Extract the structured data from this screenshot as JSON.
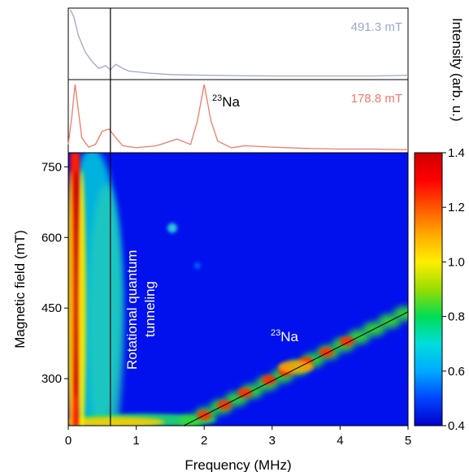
{
  "chart_data": [
    {
      "type": "line",
      "panel": "top",
      "series": [
        {
          "name": "491.3 mT",
          "color": "#9aa8c8",
          "x": [
            0.03,
            0.08,
            0.15,
            0.25,
            0.35,
            0.45,
            0.55,
            0.62,
            0.7,
            0.8,
            0.9,
            1.0,
            1.2,
            1.5,
            2.0,
            2.5,
            3.0,
            3.5,
            4.0,
            4.5,
            5.0
          ],
          "y": [
            1.0,
            0.9,
            0.62,
            0.38,
            0.24,
            0.14,
            0.18,
            0.12,
            0.2,
            0.14,
            0.1,
            0.09,
            0.07,
            0.05,
            0.04,
            0.035,
            0.03,
            0.03,
            0.03,
            0.03,
            0.04
          ]
        }
      ],
      "xlim": [
        0,
        5
      ]
    },
    {
      "type": "line",
      "panel": "middle",
      "series": [
        {
          "name": "178.8 mT",
          "color": "#f07a68",
          "x": [
            0.0,
            0.05,
            0.1,
            0.15,
            0.2,
            0.3,
            0.4,
            0.5,
            0.6,
            0.7,
            0.8,
            1.0,
            1.3,
            1.6,
            1.8,
            1.9,
            2.0,
            2.1,
            2.2,
            2.4,
            2.6,
            3.0,
            3.5,
            4.0,
            4.5,
            5.0
          ],
          "y": [
            0.1,
            0.5,
            1.0,
            0.6,
            0.2,
            0.06,
            0.1,
            0.3,
            0.33,
            0.2,
            0.08,
            0.05,
            0.08,
            0.18,
            0.1,
            0.45,
            1.0,
            0.45,
            0.15,
            0.05,
            0.08,
            0.06,
            0.04,
            0.03,
            0.03,
            0.02
          ]
        }
      ],
      "annotations": [
        {
          "text": "Na",
          "superscript": "23"
        }
      ],
      "xlim": [
        0,
        5
      ]
    },
    {
      "type": "heatmap",
      "panel": "main",
      "xlabel": "Frequency (MHz)",
      "ylabel": "Magnetic field (mT)",
      "xlim": [
        0,
        5
      ],
      "ylim": [
        200,
        780
      ],
      "xticks": [
        "0",
        "1",
        "2",
        "3",
        "4",
        "5"
      ],
      "xtick_values": [
        0,
        1,
        2,
        3,
        4,
        5
      ],
      "yticks": [
        "300",
        "450",
        "600",
        "750"
      ],
      "ytick_values": [
        300,
        450,
        600,
        750
      ],
      "vertical_line_x": 0.62,
      "na_line": {
        "x": [
          1.7,
          5.0
        ],
        "y": [
          200,
          442
        ]
      },
      "annotations": [
        {
          "text": "Rotational quantum",
          "text2": "tunneling",
          "rotation": -90
        },
        {
          "text": "Na",
          "superscript": "23"
        }
      ],
      "colorbar": {
        "label": "Intensity (arb. u.)",
        "range": [
          0.4,
          1.4
        ],
        "ticks": [
          "0.4",
          "0.6",
          "0.8",
          "1.0",
          "1.2",
          "1.4"
        ],
        "tick_values": [
          0.4,
          0.6,
          0.8,
          1.0,
          1.2,
          1.4
        ],
        "colormap": [
          "#0000cc",
          "#0044ff",
          "#00aaff",
          "#00dddd",
          "#00dd55",
          "#99dd00",
          "#ffee00",
          "#ffaa00",
          "#ff5500",
          "#ff0000",
          "#cc0000"
        ]
      }
    }
  ]
}
